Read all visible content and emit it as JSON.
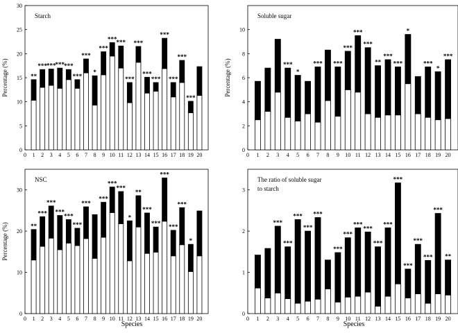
{
  "figure": {
    "xlabel_shared": "Species"
  },
  "chart_data": [
    {
      "type": "bar",
      "stacked": true,
      "title": "Starch",
      "xlabel": "",
      "ylabel": "Percentage (%)",
      "ylim": [
        0,
        30
      ],
      "yticks": [
        0,
        5,
        10,
        15,
        20,
        25,
        30
      ],
      "xticks": [
        0,
        1,
        2,
        3,
        4,
        5,
        6,
        7,
        8,
        9,
        10,
        11,
        12,
        13,
        14,
        15,
        16,
        17,
        18,
        19,
        20
      ],
      "categories": [
        1,
        2,
        3,
        4,
        5,
        6,
        7,
        8,
        9,
        10,
        11,
        12,
        13,
        14,
        15,
        16,
        17,
        18,
        19,
        20
      ],
      "series": [
        {
          "name": "lower (white)",
          "color": "#ffffff",
          "values": [
            10.3,
            13.0,
            13.4,
            12.8,
            14.6,
            12.8,
            16.0,
            9.3,
            15.6,
            19.5,
            17.0,
            9.8,
            18.2,
            11.8,
            12.2,
            16.9,
            11.0,
            14.0,
            7.7,
            11.3
          ]
        },
        {
          "name": "upper (black)",
          "color": "#000000",
          "values": [
            4.3,
            3.7,
            3.4,
            4.2,
            2.1,
            1.8,
            2.9,
            6.1,
            4.8,
            2.8,
            4.6,
            4.2,
            3.3,
            3.3,
            1.8,
            6.3,
            3.0,
            4.6,
            2.4,
            6.0
          ]
        }
      ],
      "annotations": [
        "**",
        "***",
        "***",
        "***",
        "***",
        "***",
        "***",
        "*",
        "***",
        "***",
        "***",
        "***",
        "***",
        "***",
        "***",
        "***",
        "***",
        "***",
        "***",
        ""
      ]
    },
    {
      "type": "bar",
      "stacked": true,
      "title": "Soluble sugar",
      "xlabel": "",
      "ylabel": "Percentage (%)",
      "ylim": [
        0,
        12
      ],
      "yticks": [
        0,
        2,
        4,
        6,
        8,
        10
      ],
      "xticks": [
        0,
        1,
        2,
        3,
        4,
        5,
        6,
        7,
        8,
        9,
        10,
        11,
        12,
        13,
        14,
        15,
        16,
        17,
        18,
        19,
        20
      ],
      "categories": [
        1,
        2,
        3,
        4,
        5,
        6,
        7,
        8,
        9,
        10,
        11,
        12,
        13,
        14,
        15,
        16,
        17,
        18,
        19,
        20
      ],
      "series": [
        {
          "name": "lower (white)",
          "color": "#ffffff",
          "values": [
            2.5,
            3.2,
            4.8,
            2.7,
            2.4,
            3.0,
            2.3,
            4.1,
            2.8,
            5.0,
            4.8,
            3.0,
            2.7,
            2.9,
            2.9,
            5.5,
            3.0,
            2.7,
            2.5,
            2.6
          ]
        },
        {
          "name": "upper (black)",
          "color": "#000000",
          "values": [
            3.2,
            3.6,
            4.4,
            4.1,
            3.8,
            2.7,
            4.6,
            4.2,
            4.1,
            3.2,
            4.7,
            5.5,
            4.3,
            4.6,
            4.0,
            4.1,
            3.1,
            4.2,
            4.0,
            4.9
          ]
        }
      ],
      "annotations": [
        "",
        "",
        "",
        "***",
        "*",
        "",
        "***",
        "",
        "***",
        "***",
        "***",
        "***",
        "**",
        "***",
        "***",
        "*",
        "",
        "***",
        "*",
        "***"
      ]
    },
    {
      "type": "bar",
      "stacked": true,
      "title": "NSC",
      "xlabel": "",
      "ylabel": "Percentage (%)",
      "ylim": [
        0,
        35
      ],
      "yticks": [
        0,
        10,
        20,
        30
      ],
      "xticks": [
        0,
        1,
        2,
        3,
        4,
        5,
        6,
        7,
        8,
        9,
        10,
        11,
        12,
        13,
        14,
        15,
        16,
        17,
        18,
        19,
        20
      ],
      "categories": [
        1,
        2,
        3,
        4,
        5,
        6,
        7,
        8,
        9,
        10,
        11,
        12,
        13,
        14,
        15,
        16,
        17,
        18,
        19,
        20
      ],
      "series": [
        {
          "name": "lower (white)",
          "color": "#ffffff",
          "values": [
            13.0,
            16.3,
            18.3,
            15.5,
            17.1,
            16.5,
            18.2,
            13.4,
            18.5,
            24.5,
            21.8,
            12.8,
            21.0,
            14.6,
            14.9,
            22.4,
            14.0,
            16.7,
            10.2,
            14.0
          ]
        },
        {
          "name": "upper (black)",
          "color": "#000000",
          "values": [
            7.4,
            7.2,
            7.8,
            8.3,
            5.7,
            4.2,
            7.7,
            10.6,
            8.5,
            6.2,
            7.8,
            9.7,
            7.6,
            9.8,
            6.1,
            10.5,
            6.2,
            9.0,
            6.6,
            10.9
          ]
        }
      ],
      "annotations": [
        "**",
        "***",
        "***",
        "***",
        "***",
        "***",
        "***",
        "",
        "***",
        "***",
        "***",
        "*",
        "**",
        "***",
        "***",
        "***",
        "***",
        "***",
        "*",
        ""
      ]
    },
    {
      "type": "bar",
      "stacked": true,
      "title": "The ratio of  soluble sugar\nto starch",
      "xlabel": "",
      "ylabel": "",
      "ylim": [
        0,
        3.5
      ],
      "yticks": [
        0,
        1,
        2,
        3
      ],
      "xticks": [
        0,
        1,
        2,
        3,
        4,
        5,
        6,
        7,
        8,
        9,
        10,
        11,
        12,
        13,
        14,
        15,
        16,
        17,
        18,
        19,
        20
      ],
      "categories": [
        1,
        2,
        3,
        4,
        5,
        6,
        7,
        8,
        9,
        10,
        11,
        12,
        13,
        14,
        15,
        16,
        17,
        18,
        19,
        20
      ],
      "series": [
        {
          "name": "lower (white)",
          "color": "#ffffff",
          "values": [
            0.62,
            0.38,
            0.5,
            0.36,
            0.25,
            0.3,
            0.35,
            0.6,
            0.28,
            0.4,
            0.42,
            0.52,
            0.18,
            0.42,
            0.72,
            0.38,
            0.48,
            0.25,
            0.48,
            0.45
          ]
        },
        {
          "name": "upper (black)",
          "color": "#000000",
          "values": [
            0.8,
            1.2,
            1.62,
            1.26,
            2.03,
            1.7,
            1.98,
            0.7,
            1.2,
            1.44,
            1.66,
            1.46,
            1.44,
            1.66,
            2.45,
            0.7,
            1.2,
            1.04,
            1.95,
            0.85
          ]
        }
      ],
      "annotations": [
        "",
        "",
        "***",
        "***",
        "***",
        "***",
        "***",
        "",
        "***",
        "***",
        "***",
        "***",
        "***",
        "***",
        "***",
        "***",
        "***",
        "***",
        "***",
        "**"
      ]
    }
  ]
}
